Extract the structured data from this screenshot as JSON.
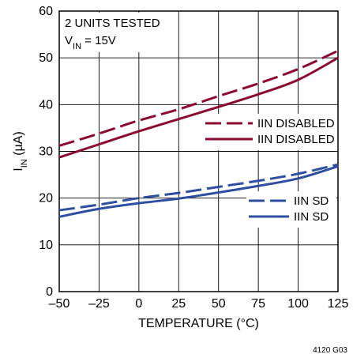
{
  "chart_data": {
    "type": "line",
    "title": "",
    "xlabel": "TEMPERATURE (°C)",
    "ylabel_main": "I",
    "ylabel_sub": "IN",
    "ylabel_unit": " (µA)",
    "xlim": [
      -50,
      125
    ],
    "ylim": [
      0,
      60
    ],
    "x_ticks": [
      -50,
      -25,
      0,
      25,
      50,
      75,
      100,
      125
    ],
    "x_tick_labels": [
      "–50",
      "–25",
      "0",
      "25",
      "50",
      "75",
      "100",
      "125"
    ],
    "y_ticks": [
      0,
      10,
      20,
      30,
      40,
      50,
      60
    ],
    "y_tick_labels": [
      "0",
      "10",
      "20",
      "30",
      "40",
      "50",
      "60"
    ],
    "grid": true,
    "legend_placement": "right",
    "annotation_line1": "2 UNITS TESTED",
    "annotation_line2_main": "V",
    "annotation_line2_sub": "IN",
    "annotation_line2_rest": " = 15V",
    "figure_id": "4120 G03",
    "series": [
      {
        "name": "IIN DISABLED",
        "color": "#8b0a2e",
        "dash": "dashed",
        "x": [
          -50,
          -25,
          0,
          25,
          50,
          75,
          100,
          125
        ],
        "y": [
          31.2,
          33.8,
          36.6,
          39.0,
          41.8,
          44.5,
          47.6,
          51.5
        ]
      },
      {
        "name": "IIN DISABLED",
        "color": "#8b0a2e",
        "dash": "solid",
        "x": [
          -50,
          -25,
          0,
          25,
          50,
          75,
          100,
          125
        ],
        "y": [
          28.7,
          31.5,
          34.3,
          36.9,
          39.5,
          42.2,
          45.3,
          50.0
        ]
      },
      {
        "name": "IIN SD",
        "color": "#2e4ea1",
        "dash": "dashed",
        "x": [
          -50,
          -25,
          0,
          25,
          50,
          75,
          100,
          125
        ],
        "y": [
          17.4,
          18.6,
          20.0,
          21.1,
          22.4,
          23.7,
          25.2,
          27.2
        ]
      },
      {
        "name": "IIN SD",
        "color": "#2e4ea1",
        "dash": "solid",
        "x": [
          -50,
          -25,
          0,
          25,
          50,
          75,
          100,
          125
        ],
        "y": [
          16.0,
          17.7,
          18.9,
          19.9,
          21.2,
          22.6,
          24.2,
          26.8
        ]
      }
    ]
  }
}
